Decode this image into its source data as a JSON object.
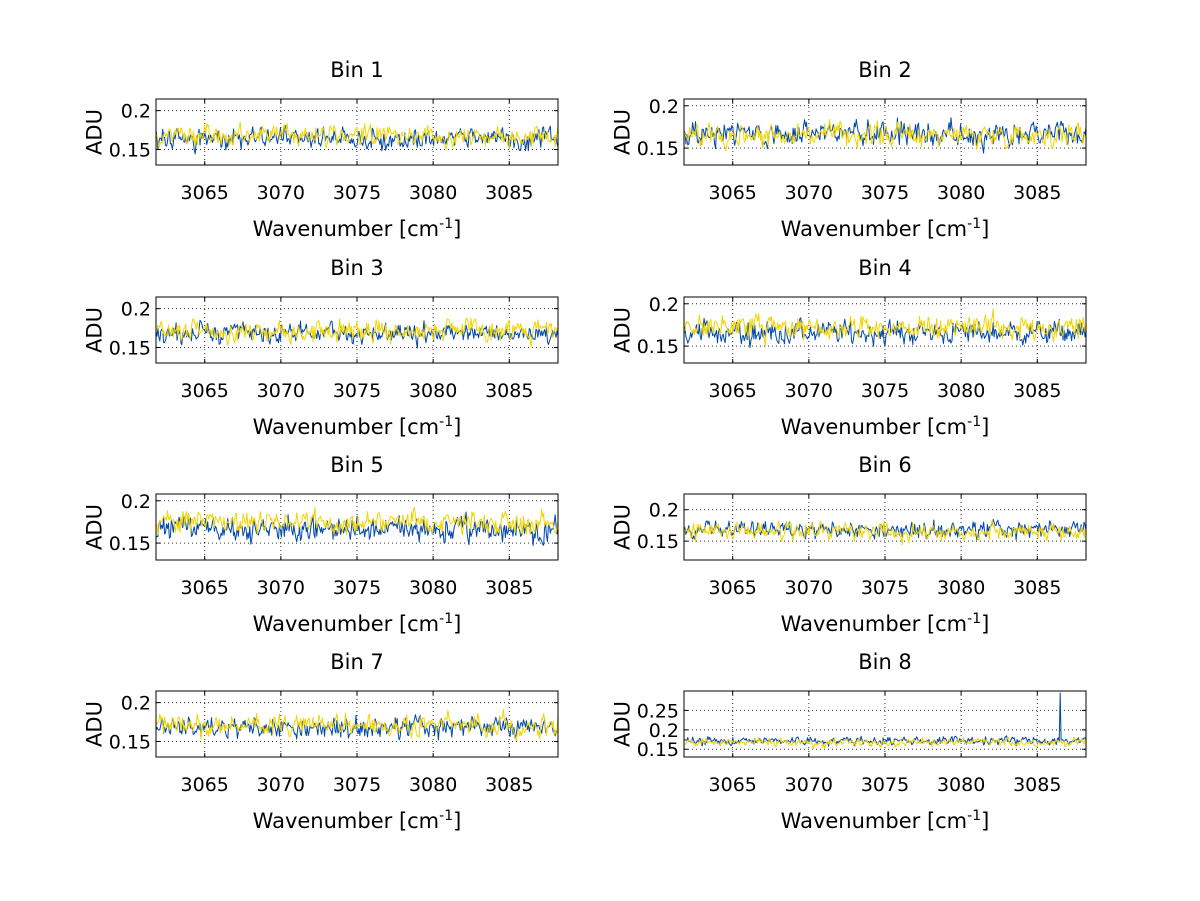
{
  "chart_data": [
    {
      "type": "line",
      "title": "Bin 1",
      "xlabel": "Wavenumber [cm",
      "xlabel_sup": "-1",
      "xlabel_end": "]",
      "ylabel": "ADU",
      "xlim": [
        3061.8,
        3088.2
      ],
      "ylim": [
        0.13,
        0.215
      ],
      "xticks": [
        3065,
        3070,
        3075,
        3080,
        3085
      ],
      "yticks": [
        0.15,
        0.2
      ],
      "ytick_labels": [
        "0.15",
        "0.2"
      ],
      "grid": true,
      "series": [
        {
          "color": "#0047ab",
          "mean": 0.165,
          "noise": 0.015,
          "seed": 11
        },
        {
          "color": "#f2d400",
          "mean": 0.168,
          "noise": 0.014,
          "seed": 12
        }
      ]
    },
    {
      "type": "line",
      "title": "Bin 2",
      "xlabel": "Wavenumber [cm",
      "xlabel_sup": "-1",
      "xlabel_end": "]",
      "ylabel": "ADU",
      "xlim": [
        3061.8,
        3088.2
      ],
      "ylim": [
        0.13,
        0.208
      ],
      "xticks": [
        3065,
        3070,
        3075,
        3080,
        3085
      ],
      "yticks": [
        0.15,
        0.2
      ],
      "ytick_labels": [
        "0.15",
        "0.2"
      ],
      "grid": true,
      "series": [
        {
          "color": "#0047ab",
          "mean": 0.167,
          "noise": 0.016,
          "seed": 21
        },
        {
          "color": "#f2d400",
          "mean": 0.166,
          "noise": 0.014,
          "seed": 22
        }
      ]
    },
    {
      "type": "line",
      "title": "Bin 3",
      "xlabel": "Wavenumber [cm",
      "xlabel_sup": "-1",
      "xlabel_end": "]",
      "ylabel": "ADU",
      "xlim": [
        3061.8,
        3088.2
      ],
      "ylim": [
        0.13,
        0.215
      ],
      "xticks": [
        3065,
        3070,
        3075,
        3080,
        3085
      ],
      "yticks": [
        0.15,
        0.2
      ],
      "ytick_labels": [
        "0.15",
        "0.2"
      ],
      "grid": true,
      "series": [
        {
          "color": "#0047ab",
          "mean": 0.168,
          "noise": 0.014,
          "seed": 31
        },
        {
          "color": "#f2d400",
          "mean": 0.172,
          "noise": 0.015,
          "seed": 32
        }
      ]
    },
    {
      "type": "line",
      "title": "Bin 4",
      "xlabel": "Wavenumber [cm",
      "xlabel_sup": "-1",
      "xlabel_end": "]",
      "ylabel": "ADU",
      "xlim": [
        3061.8,
        3088.2
      ],
      "ylim": [
        0.13,
        0.208
      ],
      "xticks": [
        3065,
        3070,
        3075,
        3080,
        3085
      ],
      "yticks": [
        0.15,
        0.2
      ],
      "ytick_labels": [
        "0.15",
        "0.2"
      ],
      "grid": true,
      "series": [
        {
          "color": "#0047ab",
          "mean": 0.166,
          "noise": 0.015,
          "seed": 41
        },
        {
          "color": "#f2d400",
          "mean": 0.172,
          "noise": 0.015,
          "seed": 42
        }
      ]
    },
    {
      "type": "line",
      "title": "Bin 5",
      "xlabel": "Wavenumber [cm",
      "xlabel_sup": "-1",
      "xlabel_end": "]",
      "ylabel": "ADU",
      "xlim": [
        3061.8,
        3088.2
      ],
      "ylim": [
        0.13,
        0.208
      ],
      "xticks": [
        3065,
        3070,
        3075,
        3080,
        3085
      ],
      "yticks": [
        0.15,
        0.2
      ],
      "ytick_labels": [
        "0.15",
        "0.2"
      ],
      "grid": true,
      "series": [
        {
          "color": "#0047ab",
          "mean": 0.166,
          "noise": 0.016,
          "seed": 51
        },
        {
          "color": "#f2d400",
          "mean": 0.175,
          "noise": 0.015,
          "seed": 52
        }
      ]
    },
    {
      "type": "line",
      "title": "Bin 6",
      "xlabel": "Wavenumber [cm",
      "xlabel_sup": "-1",
      "xlabel_end": "]",
      "ylabel": "ADU",
      "xlim": [
        3061.8,
        3088.2
      ],
      "ylim": [
        0.12,
        0.225
      ],
      "xticks": [
        3065,
        3070,
        3075,
        3080,
        3085
      ],
      "yticks": [
        0.15,
        0.2
      ],
      "ytick_labels": [
        "0.15",
        "0.2"
      ],
      "grid": true,
      "series": [
        {
          "color": "#0047ab",
          "mean": 0.168,
          "noise": 0.015,
          "seed": 61
        },
        {
          "color": "#f2d400",
          "mean": 0.166,
          "noise": 0.015,
          "seed": 62
        }
      ]
    },
    {
      "type": "line",
      "title": "Bin 7",
      "xlabel": "Wavenumber [cm",
      "xlabel_sup": "-1",
      "xlabel_end": "]",
      "ylabel": "ADU",
      "xlim": [
        3061.8,
        3088.2
      ],
      "ylim": [
        0.13,
        0.215
      ],
      "xticks": [
        3065,
        3070,
        3075,
        3080,
        3085
      ],
      "yticks": [
        0.15,
        0.2
      ],
      "ytick_labels": [
        "0.15",
        "0.2"
      ],
      "grid": true,
      "series": [
        {
          "color": "#0047ab",
          "mean": 0.168,
          "noise": 0.015,
          "seed": 71
        },
        {
          "color": "#f2d400",
          "mean": 0.171,
          "noise": 0.015,
          "seed": 72
        }
      ]
    },
    {
      "type": "line",
      "title": "Bin 8",
      "xlabel": "Wavenumber [cm",
      "xlabel_sup": "-1",
      "xlabel_end": "]",
      "ylabel": "ADU",
      "xlim": [
        3061.8,
        3088.2
      ],
      "ylim": [
        0.13,
        0.3
      ],
      "xticks": [
        3065,
        3070,
        3075,
        3080,
        3085
      ],
      "yticks": [
        0.15,
        0.2,
        0.25
      ],
      "ytick_labels": [
        "0.15",
        "0.2",
        "0.25"
      ],
      "grid": true,
      "series": [
        {
          "color": "#0047ab",
          "mean": 0.172,
          "noise": 0.012,
          "seed": 81,
          "spike": {
            "x": 3086.5,
            "y": 0.295
          }
        },
        {
          "color": "#f2d400",
          "mean": 0.168,
          "noise": 0.012,
          "seed": 82
        }
      ]
    }
  ]
}
